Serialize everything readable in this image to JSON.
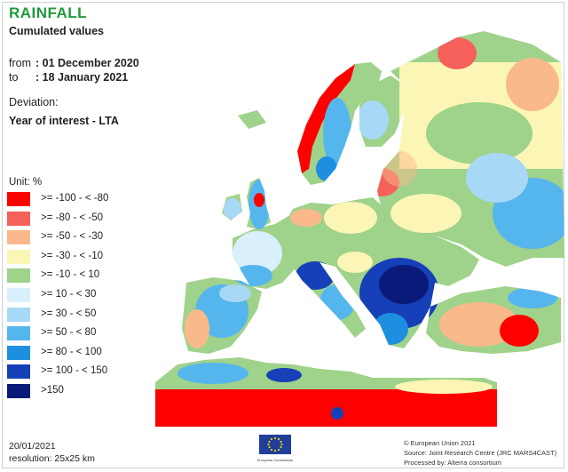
{
  "title": "RAINFALL",
  "subtitle": "Cumulated values",
  "period": {
    "from_label": "from",
    "from_value": ": 01 December 2020",
    "to_label": "to",
    "to_value": ": 18 January 2021"
  },
  "deviation_label": "Deviation:",
  "deviation_value": "Year of interest - LTA",
  "unit_label": "Unit:  %",
  "legend": [
    {
      "label": ">= -100 - < -80",
      "color": "#ff0000"
    },
    {
      "label": ">= -80 - < -50",
      "color": "#f5605a"
    },
    {
      "label": ">= -50 - < -30",
      "color": "#f9b98a"
    },
    {
      "label": ">= -30 - < -10",
      "color": "#fbf6b5"
    },
    {
      "label": ">= -10 - < 10",
      "color": "#9fd28a"
    },
    {
      "label": ">= 10 - < 30",
      "color": "#d9effb"
    },
    {
      "label": ">= 30 - < 50",
      "color": "#a7d8f5"
    },
    {
      "label": ">= 50 - < 80",
      "color": "#55b6ee"
    },
    {
      "label": ">= 80 - < 100",
      "color": "#1e8fe0"
    },
    {
      "label": ">= 100 - < 150",
      "color": "#1640b8"
    },
    {
      "label": ">150",
      "color": "#0a1a7a"
    }
  ],
  "footer": {
    "date": "20/01/2021",
    "resolution": "resolution:  25x25 km",
    "copyright": "© European Union 2021",
    "source": "Source: Joint Research Centre (JRC MARS4CAST)",
    "processed": "Processed by: Alterra consortium",
    "logo_text": "European Commission"
  }
}
